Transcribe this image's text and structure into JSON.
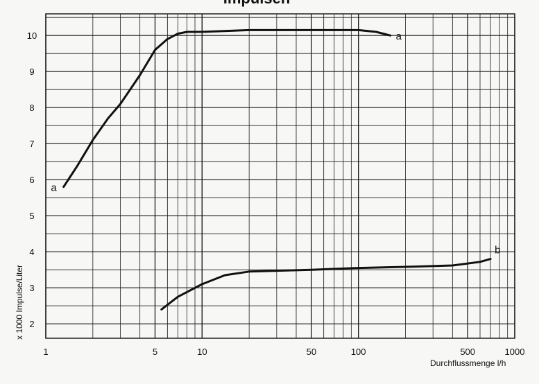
{
  "chart_data": {
    "type": "line",
    "title": "Impulsen",
    "xlabel": "Durchflussmenge l/h",
    "ylabel": "x 1000 Impulse/Liter",
    "xscale": "log",
    "xlim": [
      1,
      1000
    ],
    "ylim": [
      1.6,
      10.6
    ],
    "x_tick_labels": [
      "1",
      "5",
      "10",
      "50",
      "100",
      "500",
      "1000"
    ],
    "x_ticks": [
      1,
      5,
      10,
      50,
      100,
      500,
      1000
    ],
    "y_ticks": [
      2,
      3,
      4,
      5,
      6,
      7,
      8,
      9,
      10
    ],
    "grid": true,
    "series": [
      {
        "name": "a",
        "x": [
          1.3,
          1.6,
          2,
          2.5,
          3,
          4,
          5,
          6,
          7,
          8,
          10,
          20,
          50,
          100,
          130,
          160
        ],
        "y": [
          5.8,
          6.4,
          7.1,
          7.7,
          8.1,
          8.9,
          9.6,
          9.9,
          10.05,
          10.1,
          10.1,
          10.15,
          10.15,
          10.15,
          10.1,
          10.0
        ]
      },
      {
        "name": "b",
        "x": [
          5.5,
          7,
          10,
          14,
          20,
          50,
          100,
          200,
          400,
          600,
          700
        ],
        "y": [
          2.4,
          2.75,
          3.1,
          3.35,
          3.45,
          3.5,
          3.55,
          3.58,
          3.62,
          3.72,
          3.8
        ]
      }
    ]
  }
}
